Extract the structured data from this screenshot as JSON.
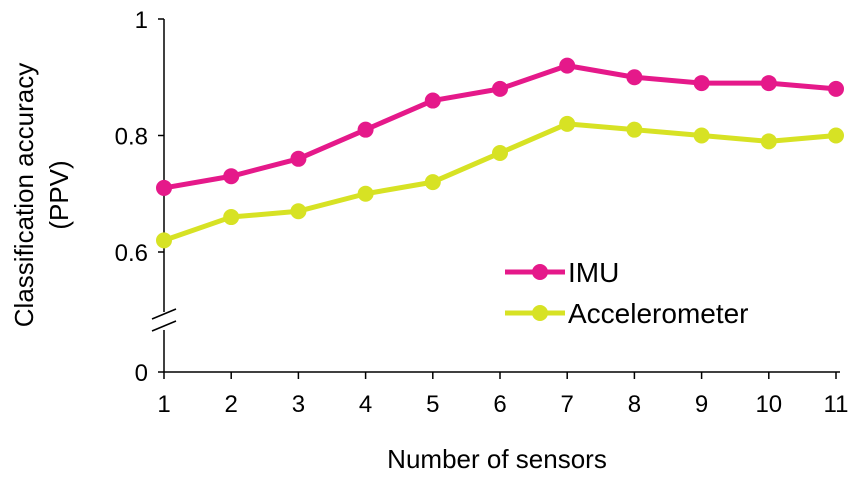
{
  "chart_data": {
    "type": "line",
    "xlabel": "Number of sensors",
    "ylabel": [
      "Classification accuracy",
      "(PPV)"
    ],
    "x": [
      1,
      2,
      3,
      4,
      5,
      6,
      7,
      8,
      9,
      10,
      11
    ],
    "x_tick_labels": [
      "1",
      "2",
      "3",
      "4",
      "5",
      "6",
      "7",
      "8",
      "9",
      "10",
      "11"
    ],
    "y_tick_labels": [
      "0",
      "0.6",
      "0.8",
      "1"
    ],
    "y_axis_break": true,
    "ylim": [
      0.5,
      1.0
    ],
    "legend_position": "right-middle",
    "grid": false,
    "series": [
      {
        "name": "IMU",
        "color": "#e5198a",
        "values": [
          0.71,
          0.73,
          0.76,
          0.81,
          0.86,
          0.88,
          0.92,
          0.9,
          0.89,
          0.89,
          0.88
        ]
      },
      {
        "name": "Accelerometer",
        "color": "#d7e224",
        "values": [
          0.62,
          0.66,
          0.67,
          0.7,
          0.72,
          0.77,
          0.82,
          0.81,
          0.8,
          0.79,
          0.8
        ]
      }
    ]
  }
}
